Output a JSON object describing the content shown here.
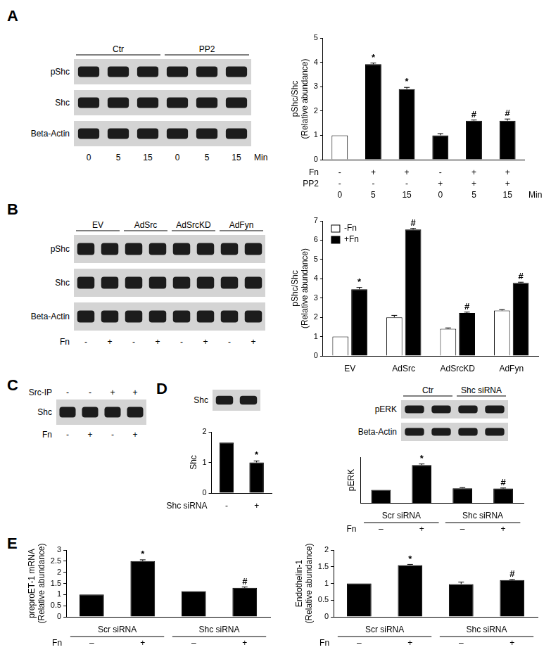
{
  "panels": [
    "A",
    "B",
    "C",
    "D",
    "E"
  ],
  "chart_data": [
    {
      "type": "bar",
      "ylabel": [
        "pShc/Shc",
        "(Relative abundance)"
      ],
      "categories": [
        "0",
        "5",
        "15",
        "0",
        "5",
        "15"
      ],
      "xlabel": "Min",
      "rows": [
        {
          "label": "Fn",
          "values": [
            "-",
            "+",
            "+",
            "-",
            "+",
            "+"
          ]
        },
        {
          "label": "PP2",
          "values": [
            "-",
            "-",
            "-",
            "+",
            "+",
            "+"
          ]
        }
      ],
      "series": [
        {
          "values": [
            1,
            3.92,
            2.9,
            1.0,
            1.6,
            1.6
          ],
          "errors": [
            0,
            0.05,
            0.07,
            0.07,
            0.03,
            0.07
          ],
          "colors": [
            "#ffffff",
            "#000000",
            "#000000",
            "#000000",
            "#000000",
            "#000000"
          ],
          "marks": [
            null,
            "*",
            "*",
            null,
            "#",
            "#"
          ]
        }
      ],
      "ylim": [
        0,
        5
      ],
      "yticks": [
        0,
        1,
        2,
        3,
        4,
        5
      ],
      "grid": false
    },
    {
      "type": "bar",
      "ylabel": [
        "pShc/Shc",
        "(Relative abundance)"
      ],
      "categories": [
        "EV",
        "AdSrc",
        "AdSrcKD",
        "AdFyn"
      ],
      "series": [
        {
          "name": "-Fn",
          "color": "#ffffff",
          "values": [
            1,
            2.0,
            1.4,
            2.35
          ],
          "errors": [
            0,
            0.1,
            0.05,
            0.05
          ]
        },
        {
          "name": "+Fn",
          "color": "#000000",
          "values": [
            3.45,
            6.55,
            2.22,
            3.78
          ],
          "errors": [
            0.1,
            0.06,
            0.05,
            0.04
          ],
          "marks": [
            "*",
            "#",
            "#",
            "#"
          ]
        }
      ],
      "ylim": [
        0,
        7
      ],
      "yticks": [
        0,
        1,
        2,
        3,
        4,
        5,
        6,
        7
      ],
      "grid": false,
      "legend": "top-left"
    },
    {
      "type": "bar",
      "ylabel": [
        "Shc"
      ],
      "categories": [
        null,
        null
      ],
      "rows": [
        {
          "label": "Shc siRNA",
          "values": [
            "-",
            "+"
          ]
        }
      ],
      "series": [
        {
          "color": "#000000",
          "values": [
            1.65,
            1.0
          ],
          "errors": [
            0,
            0.05
          ],
          "marks": [
            null,
            "*"
          ]
        }
      ],
      "ylim": [
        0,
        2
      ],
      "yticks": [
        0,
        1,
        2
      ],
      "grid": false
    },
    {
      "type": "bar",
      "ylabel": [
        "pERK"
      ],
      "categories": [
        null,
        null,
        null,
        null
      ],
      "groups": [
        "Scr siRNA",
        "Scr siRNA",
        "Shc siRNA",
        "Shc siRNA"
      ],
      "rows": [
        {
          "label": "Fn",
          "values": [
            "–",
            "+",
            "–",
            "+"
          ]
        }
      ],
      "series": [
        {
          "color": "#000000",
          "values": [
            1,
            2.9,
            1.12,
            1.1
          ],
          "errors": [
            0,
            0.08,
            0.05,
            0.04
          ],
          "marks": [
            null,
            "*",
            null,
            "#"
          ]
        }
      ],
      "ylim": [
        0,
        3.5
      ],
      "tick_labels": false,
      "grid": false
    },
    {
      "type": "bar",
      "ylabel": [
        "preproET-1 mRNA",
        "(Relative abundance)"
      ],
      "categories": [
        null,
        null,
        null,
        null
      ],
      "groups": [
        "Scr siRNA",
        "Scr siRNA",
        "Shc siRNA",
        "Shc siRNA"
      ],
      "rows": [
        {
          "label": "Fn",
          "values": [
            "–",
            "+",
            "–",
            "+"
          ]
        }
      ],
      "series": [
        {
          "color": "#000000",
          "values": [
            1,
            2.5,
            1.15,
            1.3
          ],
          "errors": [
            0,
            0.06,
            0,
            0.04
          ],
          "marks": [
            null,
            "*",
            null,
            "#"
          ]
        }
      ],
      "ylim": [
        0,
        3
      ],
      "yticks": [
        0,
        0.5,
        1,
        1.5,
        2,
        2.5,
        3
      ],
      "grid": false
    },
    {
      "type": "bar",
      "ylabel": [
        "Endothelin-1",
        "(Relative abundance)"
      ],
      "categories": [
        null,
        null,
        null,
        null
      ],
      "groups": [
        "Scr siRNA",
        "Scr siRNA",
        "Shc siRNA",
        "Shc siRNA"
      ],
      "rows": [
        {
          "label": "Fn",
          "values": [
            "–",
            "+",
            "–",
            "+"
          ]
        }
      ],
      "series": [
        {
          "color": "#000000",
          "values": [
            1,
            1.55,
            0.98,
            1.1
          ],
          "errors": [
            0,
            0.02,
            0.06,
            0.02
          ],
          "marks": [
            null,
            "*",
            null,
            "#"
          ]
        }
      ],
      "ylim": [
        0,
        2
      ],
      "yticks": [
        0,
        0.5,
        1,
        1.5,
        2
      ],
      "grid": false
    }
  ],
  "blots": [
    {
      "lanes": 6,
      "groups": [
        "Ctr",
        "Ctr",
        "Ctr",
        "PP2",
        "PP2",
        "PP2"
      ],
      "rows": [
        "pShc",
        "Shc",
        "Beta-Actin"
      ],
      "bottom_rows": [
        {
          "label": "Min",
          "values": [
            "0",
            "5",
            "15",
            "0",
            "5",
            "15"
          ]
        }
      ]
    },
    {
      "lanes": 8,
      "groups": [
        "EV",
        "EV",
        "AdSrc",
        "AdSrc",
        "AdSrcKD",
        "AdSrcKD",
        "AdFyn",
        "AdFyn"
      ],
      "rows": [
        "pShc",
        "Shc",
        "Beta-Actin"
      ],
      "bottom_rows": [
        {
          "label": "Fn",
          "values": [
            "-",
            "+",
            "-",
            "+",
            "-",
            "+",
            "-",
            "+"
          ]
        }
      ]
    },
    {
      "lanes": 4,
      "top_rows": [
        {
          "label": "Src-IP",
          "values": [
            "-",
            "-",
            "+",
            "+"
          ]
        }
      ],
      "rows": [
        "Shc"
      ],
      "bottom_rows": [
        {
          "label": "Fn",
          "values": [
            "-",
            "+",
            "-",
            "+"
          ]
        }
      ]
    },
    {
      "lanes": 2,
      "rows": [
        "Shc"
      ]
    },
    {
      "lanes": 4,
      "groups": [
        "Ctr",
        "Ctr",
        "Shc siRNA",
        "Shc siRNA"
      ],
      "rows": [
        "pERK",
        "Beta-Actin"
      ]
    }
  ]
}
